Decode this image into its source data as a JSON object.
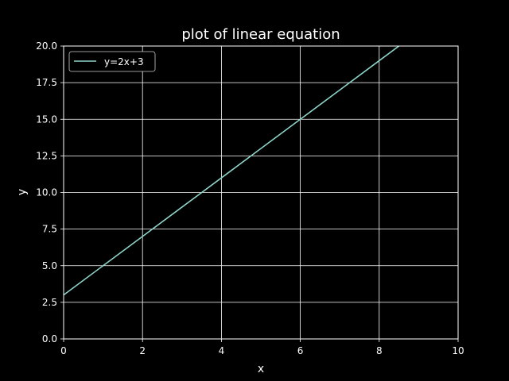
{
  "chart_data": {
    "type": "line",
    "title": "plot of linear equation",
    "xlabel": "x",
    "ylabel": "y",
    "xlim": [
      0,
      10
    ],
    "ylim": [
      0,
      20
    ],
    "xticks": [
      0,
      2,
      4,
      6,
      8,
      10
    ],
    "yticks": [
      0.0,
      2.5,
      5.0,
      7.5,
      10.0,
      12.5,
      15.0,
      17.5,
      20.0
    ],
    "xtick_labels": [
      "0",
      "2",
      "4",
      "6",
      "8",
      "10"
    ],
    "ytick_labels": [
      "0.0",
      "2.5",
      "5.0",
      "7.5",
      "10.0",
      "12.5",
      "15.0",
      "17.5",
      "20.0"
    ],
    "grid": true,
    "legend_position": "top-left",
    "background": "#000000",
    "series": [
      {
        "name": "y=2x+3",
        "color": "#8dd3c7",
        "x": [
          0,
          1,
          2,
          3,
          4,
          5,
          6,
          7,
          8,
          8.5
        ],
        "y": [
          3,
          5,
          7,
          9,
          11,
          13,
          15,
          17,
          19,
          20
        ]
      }
    ]
  }
}
